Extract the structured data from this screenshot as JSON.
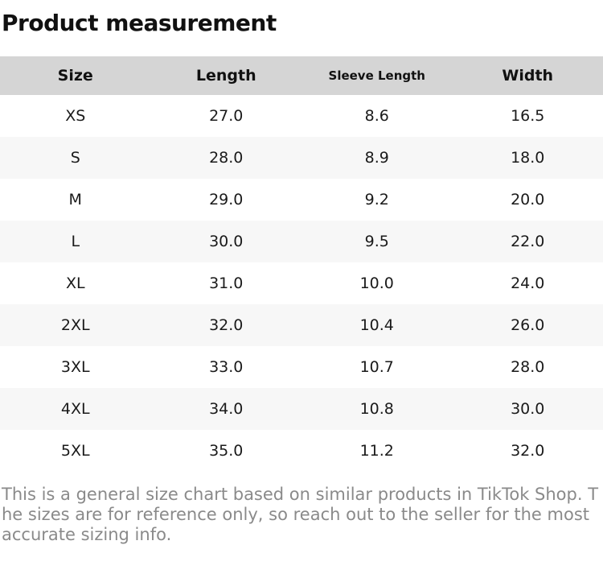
{
  "page": {
    "title": "Product measurement"
  },
  "table": {
    "columns": [
      "Size",
      "Length",
      "Sleeve Length",
      "Width"
    ],
    "rows": [
      [
        "XS",
        "27.0",
        "8.6",
        "16.5"
      ],
      [
        "S",
        "28.0",
        "8.9",
        "18.0"
      ],
      [
        "M",
        "29.0",
        "9.2",
        "20.0"
      ],
      [
        "L",
        "30.0",
        "9.5",
        "22.0"
      ],
      [
        "XL",
        "31.0",
        "10.0",
        "24.0"
      ],
      [
        "2XL",
        "32.0",
        "10.4",
        "26.0"
      ],
      [
        "3XL",
        "33.0",
        "10.7",
        "28.0"
      ],
      [
        "4XL",
        "34.0",
        "10.8",
        "30.0"
      ],
      [
        "5XL",
        "35.0",
        "11.2",
        "32.0"
      ]
    ]
  },
  "footer": {
    "note": "This is a general size chart based on similar products in TikTok Shop. The sizes are for reference only, so reach out to the seller for the most accurate sizing info."
  },
  "colors": {
    "header_bg": "#d5d5d5",
    "stripe_bg": "#f7f7f7",
    "text": "#111111",
    "note_text": "#8a8a8a"
  }
}
